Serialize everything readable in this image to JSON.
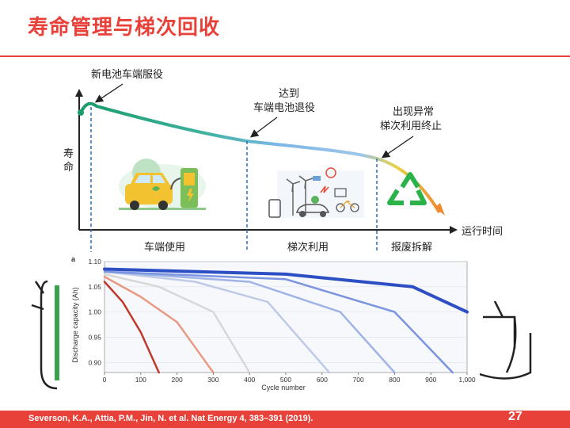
{
  "title": "寿命管理与梯次回收",
  "diagram": {
    "annotations": {
      "new_battery": "新电池车端服役",
      "reach_line1": "达到",
      "reach_line2": "车端电池退役",
      "abnormal_line1": "出现异常",
      "abnormal_line2": "梯次利用终止"
    },
    "y_axis_label_1": "寿",
    "y_axis_label_2": "命",
    "x_axis_label": "运行时间",
    "phases": [
      "车端使用",
      "梯次利用",
      "报废拆解"
    ]
  },
  "inset_chart": {
    "panel_label": "a",
    "ylabel": "Discharge capacity (Ah)",
    "xlabel": "Cycle number",
    "y_ticks": [
      "1.10",
      "1.05",
      "1.00",
      "0.95",
      "0.90"
    ],
    "x_ticks": [
      "0",
      "100",
      "200",
      "300",
      "400",
      "500",
      "600",
      "700",
      "800",
      "900",
      "1,000"
    ]
  },
  "chart_data": {
    "type": "line",
    "xlabel": "Cycle number",
    "ylabel": "Discharge capacity (Ah)",
    "xlim": [
      0,
      1000
    ],
    "ylim": [
      0.88,
      1.1
    ],
    "series": [
      {
        "x": [
          0,
          50,
          100,
          150
        ],
        "y": [
          1.06,
          1.02,
          0.96,
          0.88
        ]
      },
      {
        "x": [
          0,
          100,
          200,
          300
        ],
        "y": [
          1.07,
          1.03,
          0.98,
          0.88
        ]
      },
      {
        "x": [
          0,
          150,
          300,
          400
        ],
        "y": [
          1.075,
          1.05,
          1.0,
          0.88
        ]
      },
      {
        "x": [
          0,
          250,
          450,
          620
        ],
        "y": [
          1.08,
          1.06,
          1.02,
          0.88
        ]
      },
      {
        "x": [
          0,
          400,
          650,
          800
        ],
        "y": [
          1.08,
          1.06,
          1.0,
          0.88
        ]
      },
      {
        "x": [
          0,
          500,
          800,
          960
        ],
        "y": [
          1.08,
          1.065,
          1.0,
          0.88
        ]
      },
      {
        "x": [
          0,
          500,
          850,
          1000
        ],
        "y": [
          1.085,
          1.075,
          1.05,
          1.0
        ]
      }
    ],
    "colors": [
      "#c0392b",
      "#e89a82",
      "#d7d7d7",
      "#bfcbe6",
      "#9fb3e6",
      "#7b94e0",
      "#2d4fc4"
    ],
    "grid": true
  },
  "footer": {
    "citation": "Severson, K.A., Attia, P.M., Jin, N. et al. Nat Energy 4, 383–391 (2019).",
    "page_number": "27"
  },
  "colors": {
    "accent": "#e8413a",
    "curve_start": "#1a9b6a",
    "curve_mid": "#7bb6e8",
    "curve_end": "#f0a030",
    "dash": "#2b6fb5"
  }
}
